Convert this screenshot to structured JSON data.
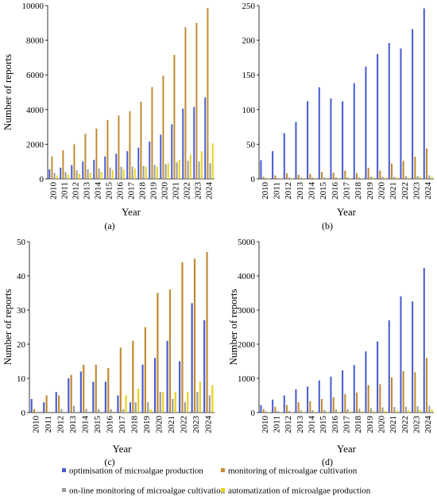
{
  "series_colors": [
    "#4a5bd0",
    "#c08a2e",
    "#9a9a9a",
    "#e6d21a"
  ],
  "legend": {
    "items": [
      "optimisation of microalgae production",
      "monitoring of microalgae cultivation",
      "on-line monitoring of microalgae cultivation",
      "automatization of microalgae production"
    ]
  },
  "chart_data": [
    {
      "type": "bar",
      "panel_label": "(a)",
      "xlabel": "Year",
      "ylabel": "Number of reports",
      "ylim": [
        0,
        10000
      ],
      "yticks": [
        0,
        2000,
        4000,
        6000,
        8000,
        10000
      ],
      "grid": false,
      "categories": [
        "2010",
        "2011",
        "2012",
        "2013",
        "2014",
        "2015",
        "2016",
        "2017",
        "2018",
        "2019",
        "2020",
        "2021",
        "2022",
        "2023",
        "2024"
      ],
      "series": [
        {
          "name": "optimisation of microalgae production",
          "values": [
            550,
            650,
            800,
            1000,
            1100,
            1300,
            1450,
            1600,
            1800,
            2150,
            2550,
            3150,
            4050,
            4150,
            4700
          ]
        },
        {
          "name": "monitoring of microalgae cultivation",
          "values": [
            1300,
            1650,
            2000,
            2600,
            2900,
            3400,
            3650,
            3900,
            4450,
            5300,
            5950,
            7150,
            8750,
            9000,
            9850
          ]
        },
        {
          "name": "on-line monitoring of microalgae cultivation",
          "values": [
            350,
            400,
            500,
            550,
            600,
            650,
            700,
            700,
            750,
            800,
            850,
            950,
            1050,
            1000,
            900
          ]
        },
        {
          "name": "automatization of microalgae production",
          "values": [
            200,
            250,
            300,
            350,
            400,
            500,
            550,
            600,
            700,
            700,
            900,
            1100,
            1400,
            1600,
            2050
          ]
        }
      ]
    },
    {
      "type": "bar",
      "panel_label": "(b)",
      "xlabel": "Year",
      "ylabel": "",
      "ylim": [
        0,
        250
      ],
      "yticks": [
        0,
        50,
        100,
        150,
        200,
        250
      ],
      "grid": false,
      "categories": [
        "2010",
        "2011",
        "2012",
        "2013",
        "2014",
        "2015",
        "2016",
        "2017",
        "2018",
        "2019",
        "2020",
        "2021",
        "2022",
        "2023",
        "2024"
      ],
      "series": [
        {
          "name": "optimisation of microalgae production",
          "values": [
            27,
            40,
            66,
            82,
            112,
            132,
            116,
            112,
            138,
            162,
            180,
            196,
            188,
            216,
            246
          ]
        },
        {
          "name": "monitoring of microalgae cultivation",
          "values": [
            3,
            5,
            8,
            6,
            7,
            10,
            9,
            12,
            8,
            16,
            12,
            22,
            26,
            32,
            44
          ]
        },
        {
          "name": "on-line monitoring of microalgae cultivation",
          "values": [
            1,
            1,
            2,
            2,
            2,
            2,
            2,
            2,
            2,
            3,
            3,
            3,
            4,
            4,
            5
          ]
        },
        {
          "name": "automatization of microalgae production",
          "values": [
            1,
            1,
            1,
            1,
            1,
            1,
            1,
            1,
            1,
            2,
            2,
            2,
            2,
            3,
            3
          ]
        }
      ]
    },
    {
      "type": "bar",
      "panel_label": "(c)",
      "xlabel": "Year",
      "ylabel": "Number of reports",
      "ylim": [
        0,
        50
      ],
      "yticks": [
        0,
        10,
        20,
        30,
        40,
        50
      ],
      "grid": false,
      "categories": [
        "2010",
        "2011",
        "2012",
        "2013",
        "2014",
        "2015",
        "2016",
        "2017",
        "2018",
        "2019",
        "2020",
        "2021",
        "2022",
        "2023",
        "2024"
      ],
      "series": [
        {
          "name": "optimisation of microalgae production",
          "values": [
            4,
            3,
            6,
            10,
            12,
            9,
            9,
            5,
            3,
            14,
            16,
            21,
            15,
            32,
            27
          ]
        },
        {
          "name": "monitoring of microalgae cultivation",
          "values": [
            1,
            5,
            5,
            11,
            14,
            14,
            13,
            19,
            21,
            25,
            35,
            36,
            44,
            45,
            47
          ]
        },
        {
          "name": "on-line monitoring of microalgae cultivation",
          "values": [
            0,
            0,
            1,
            2,
            1,
            1,
            1,
            1,
            3,
            3,
            6,
            4,
            3,
            6,
            5
          ]
        },
        {
          "name": "automatization of microalgae production",
          "values": [
            0,
            0,
            0,
            0,
            0,
            0,
            0,
            5,
            7,
            1,
            6,
            6,
            6,
            9,
            8
          ]
        }
      ]
    },
    {
      "type": "bar",
      "panel_label": "(d)",
      "xlabel": "Year",
      "ylabel": "Number of reports",
      "ylim": [
        0,
        5000
      ],
      "yticks": [
        0,
        1000,
        2000,
        3000,
        4000,
        5000
      ],
      "grid": false,
      "categories": [
        "2010",
        "2011",
        "2012",
        "2013",
        "2014",
        "2015",
        "2016",
        "2017",
        "2018",
        "2019",
        "2020",
        "2021",
        "2022",
        "2023",
        "2024"
      ],
      "series": [
        {
          "name": "optimisation of microalgae production",
          "values": [
            220,
            380,
            500,
            680,
            760,
            940,
            1050,
            1230,
            1390,
            1790,
            2080,
            2700,
            3400,
            3250,
            4230
          ]
        },
        {
          "name": "monitoring of microalgae cultivation",
          "values": [
            100,
            170,
            220,
            300,
            330,
            400,
            450,
            540,
            590,
            800,
            830,
            1030,
            1210,
            1180,
            1600
          ]
        },
        {
          "name": "on-line monitoring of microalgae cultivation",
          "values": [
            30,
            40,
            50,
            60,
            70,
            80,
            90,
            100,
            110,
            130,
            150,
            160,
            170,
            180,
            200
          ]
        },
        {
          "name": "automatization of microalgae production",
          "values": [
            10,
            10,
            15,
            20,
            20,
            25,
            30,
            35,
            40,
            45,
            50,
            60,
            70,
            80,
            90
          ]
        }
      ]
    }
  ]
}
